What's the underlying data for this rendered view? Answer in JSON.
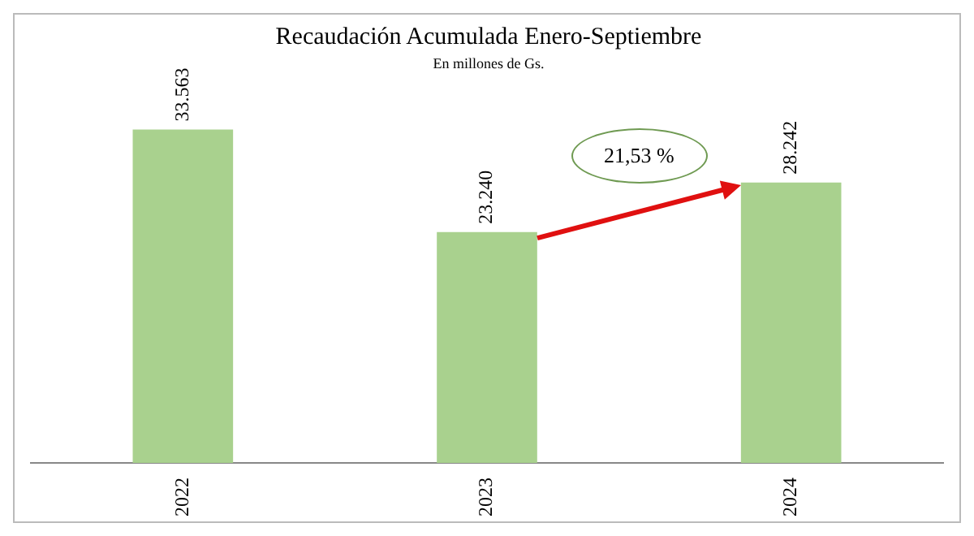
{
  "chart_data": {
    "type": "bar",
    "title": "Recaudación Acumulada Enero-Septiembre",
    "subtitle": "En millones de Gs.",
    "categories": [
      "2022",
      "2023",
      "2024"
    ],
    "values": [
      33563,
      23240,
      28242
    ],
    "value_labels": [
      "33.563",
      "23.240",
      "28.242"
    ],
    "color": "#a9d18e",
    "annotations": [
      "21,53 %"
    ],
    "grid": false,
    "legend": false,
    "tick_labels": "x"
  }
}
